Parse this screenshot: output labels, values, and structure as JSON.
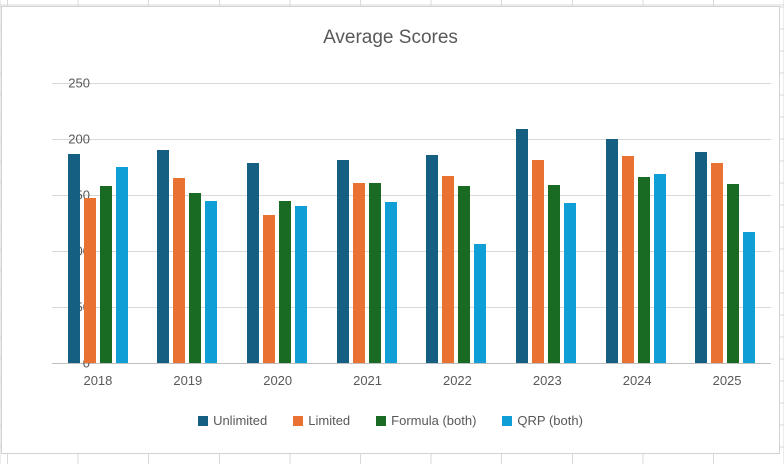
{
  "chart_data": {
    "type": "bar",
    "title": "Average Scores",
    "categories": [
      "2018",
      "2019",
      "2020",
      "2021",
      "2022",
      "2023",
      "2024",
      "2025"
    ],
    "series": [
      {
        "name": "Unlimited",
        "color": "#156082",
        "values": [
          187,
          190,
          179,
          181,
          186,
          209,
          200,
          188
        ]
      },
      {
        "name": "Limited",
        "color": "#E97132",
        "values": [
          147,
          165,
          132,
          161,
          167,
          181,
          185,
          179
        ]
      },
      {
        "name": "Formula (both)",
        "color": "#196B24",
        "values": [
          158,
          152,
          145,
          161,
          158,
          159,
          166,
          160
        ]
      },
      {
        "name": "QRP (both)",
        "color": "#0F9ED5",
        "values": [
          175,
          145,
          140,
          144,
          106,
          143,
          169,
          117
        ]
      }
    ],
    "xlabel": "",
    "ylabel": "",
    "ylim": [
      0,
      250
    ],
    "yticks": [
      0,
      50,
      100,
      150,
      200,
      250
    ],
    "grid": true,
    "legend_position": "bottom"
  },
  "colors": {
    "text": "#595959",
    "gridline": "#D9D9D9",
    "axis_line": "#BFBFBF",
    "chart_border": "#D2D2D2",
    "sheet_gridline": "#D9D9D9"
  }
}
